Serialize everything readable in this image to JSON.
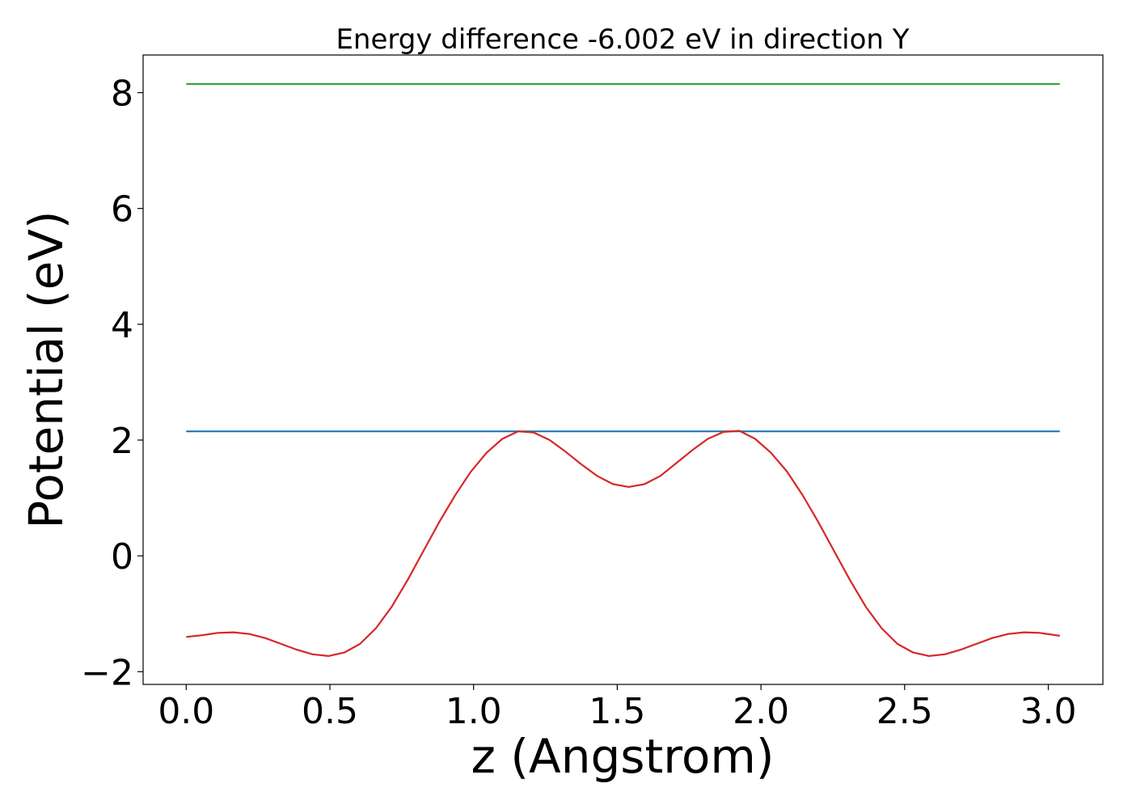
{
  "chart_data": {
    "type": "line",
    "title": "Energy difference -6.002 eV in direction Y",
    "xlabel": "z (Angstrom)",
    "ylabel": "Potential (eV)",
    "xlim": [
      -0.15,
      3.19
    ],
    "ylim": [
      -2.22,
      8.65
    ],
    "xticks": [
      0.0,
      0.5,
      1.0,
      1.5,
      2.0,
      2.5,
      3.0
    ],
    "xtick_labels": [
      "0.0",
      "0.5",
      "1.0",
      "1.5",
      "2.0",
      "2.5",
      "3.0"
    ],
    "yticks": [
      -2,
      0,
      2,
      4,
      6,
      8
    ],
    "ytick_labels": [
      "−2",
      "0",
      "2",
      "4",
      "6",
      "8"
    ],
    "grid": false,
    "series": [
      {
        "color": "#2ca02c",
        "x": [
          0.0,
          3.04
        ],
        "y": [
          8.15,
          8.15
        ]
      },
      {
        "color": "#1f77b4",
        "x": [
          0.0,
          3.04
        ],
        "y": [
          2.15,
          2.15
        ]
      },
      {
        "color": "#d62728",
        "x": [
          0.0,
          0.055,
          0.11,
          0.165,
          0.22,
          0.275,
          0.33,
          0.385,
          0.44,
          0.495,
          0.55,
          0.605,
          0.66,
          0.715,
          0.77,
          0.825,
          0.88,
          0.935,
          0.99,
          1.045,
          1.1,
          1.155,
          1.21,
          1.265,
          1.32,
          1.375,
          1.43,
          1.485,
          1.54,
          1.595,
          1.65,
          1.705,
          1.76,
          1.815,
          1.87,
          1.925,
          1.98,
          2.035,
          2.09,
          2.145,
          2.2,
          2.255,
          2.31,
          2.365,
          2.42,
          2.475,
          2.53,
          2.585,
          2.64,
          2.695,
          2.75,
          2.805,
          2.86,
          2.915,
          2.97,
          3.04
        ],
        "y": [
          -1.4,
          -1.37,
          -1.33,
          -1.32,
          -1.35,
          -1.42,
          -1.52,
          -1.62,
          -1.7,
          -1.73,
          -1.67,
          -1.52,
          -1.25,
          -0.88,
          -0.42,
          0.08,
          0.58,
          1.04,
          1.45,
          1.78,
          2.02,
          2.15,
          2.13,
          2.0,
          1.8,
          1.58,
          1.38,
          1.24,
          1.19,
          1.24,
          1.38,
          1.6,
          1.82,
          2.02,
          2.14,
          2.16,
          2.02,
          1.78,
          1.46,
          1.05,
          0.58,
          0.08,
          -0.42,
          -0.88,
          -1.25,
          -1.52,
          -1.67,
          -1.73,
          -1.7,
          -1.62,
          -1.52,
          -1.42,
          -1.35,
          -1.32,
          -1.33,
          -1.38
        ]
      }
    ]
  }
}
